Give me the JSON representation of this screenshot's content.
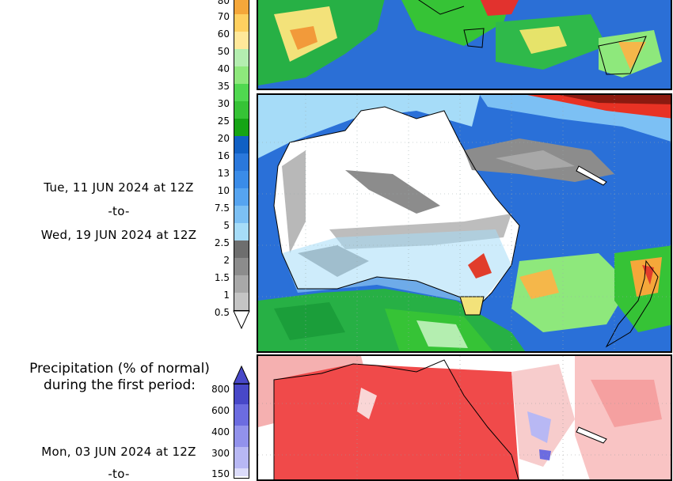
{
  "panel_upper_map": {
    "alt": "Precipitation map (tail of previous panel)"
  },
  "precip_inches_legend": {
    "labels": [
      "80",
      "70",
      "60",
      "50",
      "40",
      "35",
      "30",
      "25",
      "20",
      "16",
      "13",
      "10",
      "7.5",
      "5",
      "2.5",
      "2",
      "1.5",
      "1",
      "0.5"
    ],
    "colors": [
      "#f5a73a",
      "#ffd060",
      "#ffe89a",
      "#b4eeb0",
      "#8ee87c",
      "#50d850",
      "#36c336",
      "#16a416",
      "#1060c4",
      "#2a78dc",
      "#3a8ce8",
      "#56a4f0",
      "#7cc0f4",
      "#a6dcf8",
      "#6e6e6e",
      "#8c8c8c",
      "#a8a8a8",
      "#c4c4c4",
      "#ffffff"
    ]
  },
  "period1": {
    "start": "Tue, 11 JUN 2024 at 12Z",
    "sep": "-to-",
    "end": "Wed, 19 JUN 2024 at 12Z"
  },
  "pct_normal_legend": {
    "title_line1": "Precipitation (% of normal)",
    "title_line2": "during the first period:",
    "labels": [
      "800",
      "600",
      "400",
      "300",
      "150"
    ],
    "colors": [
      "#4848c8",
      "#6c6ce0",
      "#9292ec",
      "#b8b8f4",
      "#dcdcfa"
    ]
  },
  "period2": {
    "start": "Mon, 03 JUN 2024 at 12Z",
    "sep": "-to-"
  },
  "colors": {
    "ocean_green": "#22b34a",
    "ocean_blue": "#2a70d8",
    "dry_white": "#ffffff",
    "anomaly_red": "#f04a4a"
  }
}
